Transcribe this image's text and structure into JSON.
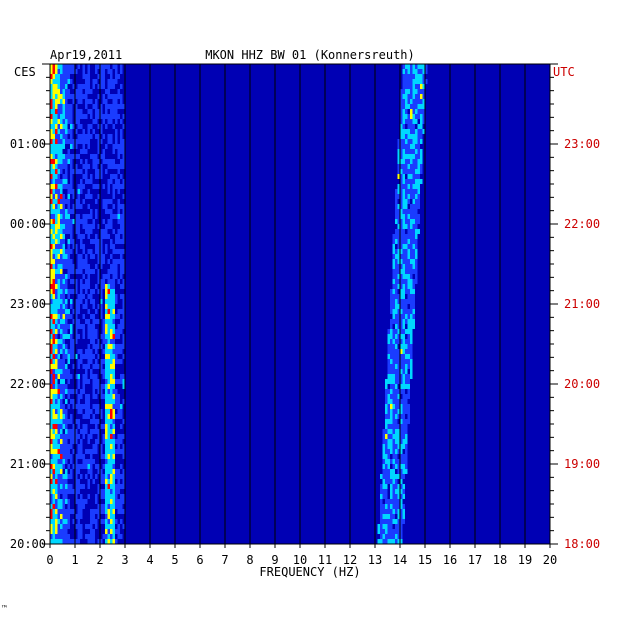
{
  "chart_data": {
    "type": "heatmap",
    "date": "Apr19,2011",
    "title": "MKON HHZ BW 01 (Konnersreuth)",
    "xlabel": "FREQUENCY (HZ)",
    "x_range": [
      0,
      20
    ],
    "x_ticks": [
      "0",
      "1",
      "2",
      "3",
      "4",
      "5",
      "6",
      "7",
      "8",
      "9",
      "10",
      "11",
      "12",
      "13",
      "14",
      "15",
      "16",
      "17",
      "18",
      "19",
      "20"
    ],
    "left_axis": {
      "label": "CES",
      "ticks": [
        "01:00",
        "00:00",
        "23:00",
        "22:00",
        "21:00",
        "20:00"
      ]
    },
    "right_axis": {
      "label": "UTC",
      "ticks": [
        "23:00",
        "22:00",
        "21:00",
        "20:00",
        "19:00",
        "18:00"
      ]
    },
    "time_span_hours": 6,
    "colors": {
      "background": "#0000b4",
      "low": "#1a3cff",
      "mid": "#00d7ff",
      "high": "#ffff00",
      "peak": "#ff0000",
      "right_axis": "#cc0000"
    },
    "energy_bands": [
      {
        "freq_hz": [
          0,
          1
        ],
        "note": "strong low-frequency energy (yellow/red)"
      },
      {
        "freq_hz": [
          2.2,
          2.6
        ],
        "note": "moderate band"
      },
      {
        "freq_hz": [
          13,
          15
        ],
        "note": "persistent band drifting with time"
      }
    ]
  },
  "corner_mark": "™"
}
